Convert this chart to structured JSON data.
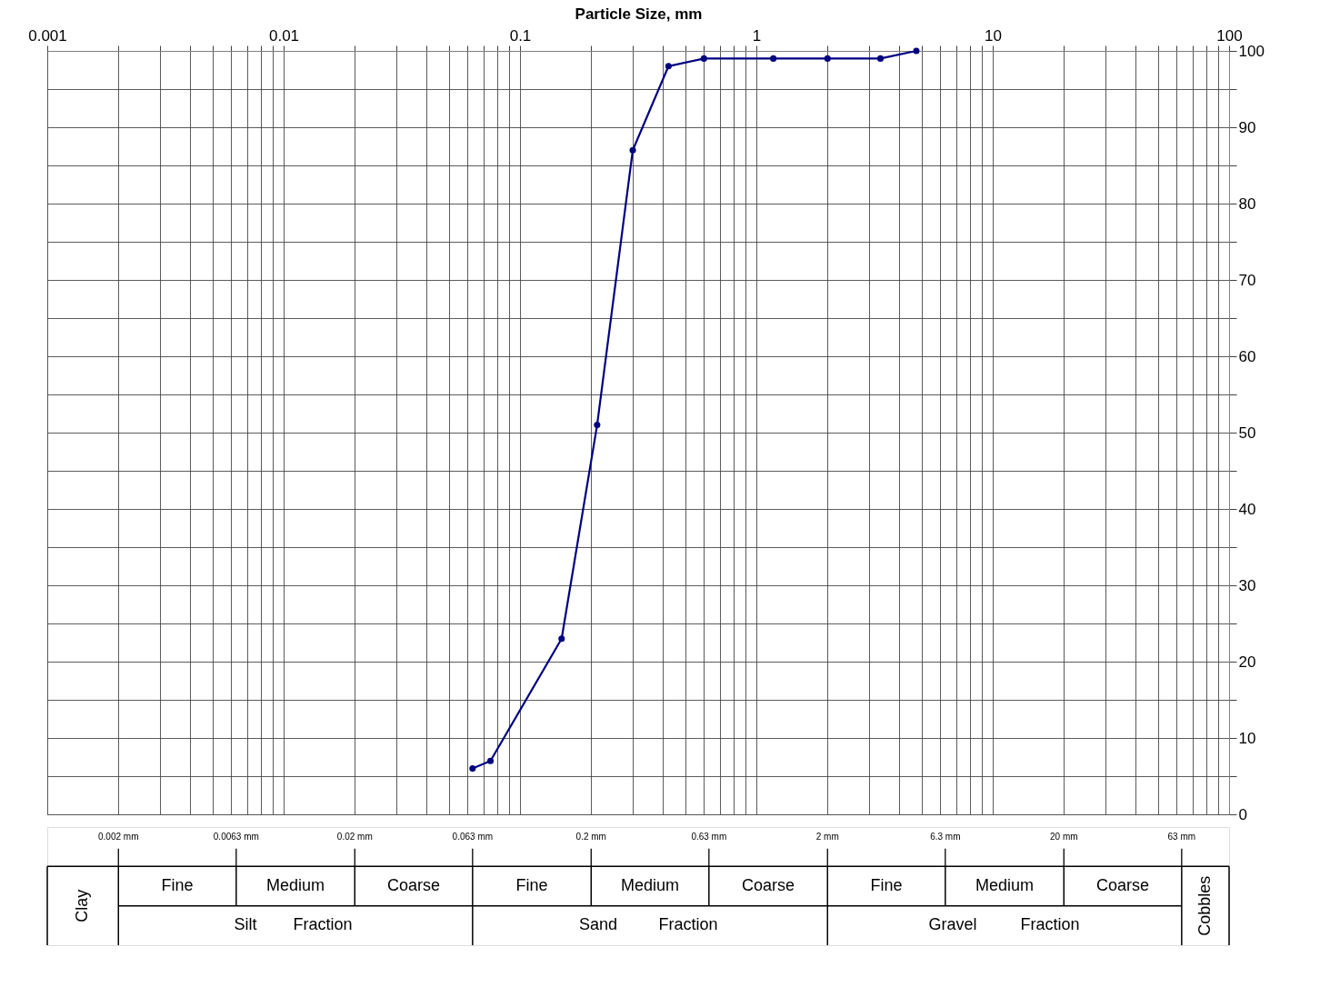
{
  "chart_data": {
    "type": "line",
    "xlabel": "Particle Size, mm",
    "xlim": [
      0.001,
      100
    ],
    "xticks": [
      0.001,
      {
        "value": 0.002,
        "label": null
      },
      {
        "value": 0.003,
        "label": null
      },
      {
        "value": 0.004,
        "label": null
      },
      {
        "value": 0.005,
        "label": null
      },
      {
        "value": 0.006,
        "label": null
      },
      {
        "value": 0.007,
        "label": null
      },
      {
        "value": 0.008,
        "label": null
      },
      {
        "value": 0.009,
        "label": null
      },
      0.01,
      {
        "value": 0.02,
        "label": null
      },
      {
        "value": 0.03,
        "label": null
      },
      {
        "value": 0.04,
        "label": null
      },
      {
        "value": 0.05,
        "label": null
      },
      {
        "value": 0.06,
        "label": null
      },
      {
        "value": 0.07,
        "label": null
      },
      {
        "value": 0.08,
        "label": null
      },
      {
        "value": 0.09,
        "label": null
      },
      0.1,
      {
        "value": 0.2,
        "label": null
      },
      {
        "value": 0.3,
        "label": null
      },
      {
        "value": 0.4,
        "label": null
      },
      {
        "value": 0.5,
        "label": null
      },
      {
        "value": 0.6,
        "label": null
      },
      {
        "value": 0.7,
        "label": null
      },
      {
        "value": 0.8,
        "label": null
      },
      {
        "value": 0.9,
        "label": null
      },
      1,
      {
        "value": 2,
        "label": null
      },
      {
        "value": 3,
        "label": null
      },
      {
        "value": 4,
        "label": null
      },
      {
        "value": 5,
        "label": null
      },
      {
        "value": 6,
        "label": null
      },
      {
        "value": 7,
        "label": null
      },
      {
        "value": 8,
        "label": null
      },
      {
        "value": 9,
        "label": null
      },
      10,
      {
        "value": 20,
        "label": null
      },
      {
        "value": 30,
        "label": null
      },
      {
        "value": 40,
        "label": null
      },
      {
        "value": 50,
        "label": null
      },
      {
        "value": 60,
        "label": null
      },
      {
        "value": 70,
        "label": null
      },
      {
        "value": 80,
        "label": null
      },
      {
        "value": 90,
        "label": null
      },
      100
    ],
    "log": "x",
    "ylim": [
      0,
      100
    ],
    "yticks": [
      0,
      {
        "value": 5,
        "label": null
      },
      10,
      {
        "value": 15,
        "label": null
      },
      20,
      {
        "value": 25,
        "label": null
      },
      30,
      {
        "value": 35,
        "label": null
      },
      40,
      {
        "value": 45,
        "label": null
      },
      50,
      {
        "value": 55,
        "label": null
      },
      60,
      {
        "value": 65,
        "label": null
      },
      70,
      {
        "value": 75,
        "label": null
      },
      80,
      {
        "value": 85,
        "label": null
      },
      90,
      {
        "value": 95,
        "label": null
      },
      100
    ],
    "grid": true,
    "marker": "circle",
    "line_style": "solid",
    "series": [
      {
        "color": "#000080",
        "x": [
          0.063,
          0.075,
          0.15,
          0.212,
          0.3,
          0.425,
          0.6,
          1.18,
          2,
          3.35,
          4.75
        ],
        "values": [
          6,
          7,
          23,
          51,
          87,
          98,
          99,
          99,
          99,
          99,
          100
        ]
      }
    ],
    "ref_lines": [
      {
        "axis": "x",
        "value": 0.002,
        "label": "0.002 mm"
      },
      {
        "axis": "x",
        "value": 0.0063,
        "label": "0.0063 mm"
      },
      {
        "axis": "x",
        "value": 0.02,
        "label": "0.02 mm"
      },
      {
        "axis": "x",
        "value": 0.063,
        "label": "0.063 mm"
      },
      {
        "axis": "x",
        "value": 0.2,
        "label": "0.2 mm"
      },
      {
        "axis": "x",
        "value": 0.63,
        "label": "0.63 mm"
      },
      {
        "axis": "x",
        "value": 2,
        "label": "2 mm"
      },
      {
        "axis": "x",
        "value": 6.3,
        "label": "6.3 mm"
      },
      {
        "axis": "x",
        "value": 20,
        "label": "20 mm"
      },
      {
        "axis": "x",
        "value": 63,
        "label": "63 mm"
      }
    ],
    "annotations": [
      "Clay",
      "Fine",
      "Medium",
      "Coarse",
      "Silt",
      "Fraction",
      "Fine",
      "Medium",
      "Coarse",
      "Sand",
      "Fraction",
      "Fine",
      "Medium",
      "Coarse",
      "Gravel",
      "Fraction",
      "Cobbles"
    ]
  }
}
